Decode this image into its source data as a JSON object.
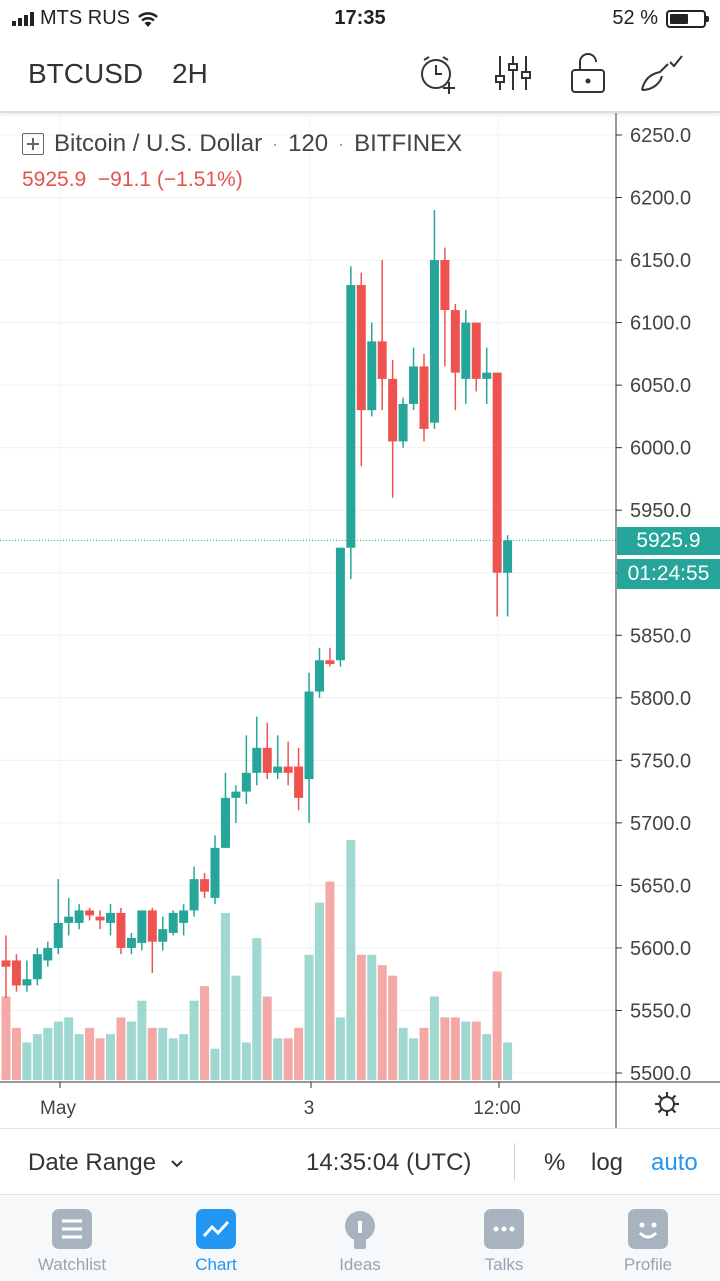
{
  "status_bar": {
    "carrier": "MTS RUS",
    "time": "17:35",
    "battery": "52 %"
  },
  "toolbar": {
    "symbol": "BTCUSD",
    "timeframe": "2H"
  },
  "legend": {
    "name": "Bitcoin / U.S. Dollar",
    "interval": "120",
    "exchange": "BITFINEX",
    "price": "5925.9",
    "change": "−91.1",
    "change_pct": "(−1.51%)"
  },
  "price_axis": {
    "labels": [
      "6250.0",
      "6200.0",
      "6150.0",
      "6100.0",
      "6050.0",
      "6000.0",
      "5950.0",
      "5900.0",
      "5850.0",
      "5800.0",
      "5750.0",
      "5700.0",
      "5650.0",
      "5600.0",
      "5550.0",
      "5500.0"
    ]
  },
  "last_price_tag": "5925.9",
  "countdown": "01:24:55",
  "time_axis": {
    "labels": [
      "May",
      "3",
      "12:00"
    ]
  },
  "bottom_bar": {
    "date_range": "Date Range",
    "utc_time": "14:35:04 (UTC)",
    "percent": "%",
    "log": "log",
    "auto": "auto"
  },
  "tabs": [
    {
      "label": "Watchlist",
      "icon": "watchlist-icon"
    },
    {
      "label": "Chart",
      "icon": "chart-icon",
      "active": true
    },
    {
      "label": "Ideas",
      "icon": "ideas-icon"
    },
    {
      "label": "Talks",
      "icon": "talks-icon"
    },
    {
      "label": "Profile",
      "icon": "profile-icon"
    }
  ],
  "colors": {
    "up": "#26a69a",
    "down": "#ef5350",
    "accent": "#2196f3"
  },
  "chart_data": {
    "type": "candlestick",
    "y_range": [
      5500,
      6250
    ],
    "candles": [
      {
        "o": 5590,
        "h": 5610,
        "l": 5560,
        "c": 5585
      },
      {
        "o": 5590,
        "h": 5595,
        "l": 5565,
        "c": 5570
      },
      {
        "o": 5570,
        "h": 5590,
        "l": 5565,
        "c": 5575
      },
      {
        "o": 5575,
        "h": 5600,
        "l": 5570,
        "c": 5595
      },
      {
        "o": 5590,
        "h": 5605,
        "l": 5585,
        "c": 5600
      },
      {
        "o": 5600,
        "h": 5655,
        "l": 5595,
        "c": 5620
      },
      {
        "o": 5620,
        "h": 5640,
        "l": 5610,
        "c": 5625
      },
      {
        "o": 5620,
        "h": 5635,
        "l": 5615,
        "c": 5630
      },
      {
        "o": 5630,
        "h": 5632,
        "l": 5622,
        "c": 5626
      },
      {
        "o": 5625,
        "h": 5630,
        "l": 5615,
        "c": 5622
      },
      {
        "o": 5620,
        "h": 5635,
        "l": 5610,
        "c": 5628
      },
      {
        "o": 5628,
        "h": 5632,
        "l": 5595,
        "c": 5600
      },
      {
        "o": 5600,
        "h": 5612,
        "l": 5595,
        "c": 5608
      },
      {
        "o": 5604,
        "h": 5630,
        "l": 5598,
        "c": 5630
      },
      {
        "o": 5630,
        "h": 5632,
        "l": 5580,
        "c": 5605
      },
      {
        "o": 5605,
        "h": 5625,
        "l": 5598,
        "c": 5615
      },
      {
        "o": 5612,
        "h": 5630,
        "l": 5610,
        "c": 5628
      },
      {
        "o": 5620,
        "h": 5635,
        "l": 5610,
        "c": 5630
      },
      {
        "o": 5630,
        "h": 5665,
        "l": 5625,
        "c": 5655
      },
      {
        "o": 5655,
        "h": 5660,
        "l": 5640,
        "c": 5645
      },
      {
        "o": 5640,
        "h": 5690,
        "l": 5635,
        "c": 5680
      },
      {
        "o": 5680,
        "h": 5740,
        "l": 5680,
        "c": 5720
      },
      {
        "o": 5720,
        "h": 5730,
        "l": 5700,
        "c": 5725
      },
      {
        "o": 5725,
        "h": 5770,
        "l": 5715,
        "c": 5740
      },
      {
        "o": 5740,
        "h": 5785,
        "l": 5730,
        "c": 5760
      },
      {
        "o": 5760,
        "h": 5780,
        "l": 5735,
        "c": 5740
      },
      {
        "o": 5740,
        "h": 5770,
        "l": 5735,
        "c": 5745
      },
      {
        "o": 5745,
        "h": 5765,
        "l": 5730,
        "c": 5740
      },
      {
        "o": 5745,
        "h": 5760,
        "l": 5710,
        "c": 5720
      },
      {
        "o": 5735,
        "h": 5820,
        "l": 5700,
        "c": 5805
      },
      {
        "o": 5805,
        "h": 5840,
        "l": 5800,
        "c": 5830
      },
      {
        "o": 5830,
        "h": 5840,
        "l": 5825,
        "c": 5827
      },
      {
        "o": 5830,
        "h": 5920,
        "l": 5825,
        "c": 5920
      },
      {
        "o": 5920,
        "h": 6145,
        "l": 5895,
        "c": 6130
      },
      {
        "o": 6130,
        "h": 6140,
        "l": 5985,
        "c": 6030
      },
      {
        "o": 6030,
        "h": 6100,
        "l": 6025,
        "c": 6085
      },
      {
        "o": 6085,
        "h": 6150,
        "l": 6030,
        "c": 6055
      },
      {
        "o": 6055,
        "h": 6070,
        "l": 5960,
        "c": 6005
      },
      {
        "o": 6005,
        "h": 6040,
        "l": 6000,
        "c": 6035
      },
      {
        "o": 6035,
        "h": 6080,
        "l": 6030,
        "c": 6065
      },
      {
        "o": 6065,
        "h": 6075,
        "l": 6005,
        "c": 6015
      },
      {
        "o": 6020,
        "h": 6190,
        "l": 6015,
        "c": 6150
      },
      {
        "o": 6150,
        "h": 6160,
        "l": 6065,
        "c": 6110
      },
      {
        "o": 6110,
        "h": 6115,
        "l": 6030,
        "c": 6060
      },
      {
        "o": 6055,
        "h": 6110,
        "l": 6035,
        "c": 6100
      },
      {
        "o": 6100,
        "h": 6100,
        "l": 6045,
        "c": 6055
      },
      {
        "o": 6055,
        "h": 6080,
        "l": 6035,
        "c": 6060
      },
      {
        "o": 6060,
        "h": 6060,
        "l": 5865,
        "c": 5900
      },
      {
        "o": 5900,
        "h": 5930,
        "l": 5865,
        "c": 5926
      }
    ],
    "volume": [
      40,
      25,
      18,
      22,
      25,
      28,
      30,
      22,
      25,
      20,
      22,
      30,
      28,
      38,
      25,
      25,
      20,
      22,
      38,
      45,
      15,
      80,
      50,
      18,
      68,
      40,
      20,
      20,
      25,
      60,
      85,
      95,
      30,
      115,
      60,
      60,
      55,
      50,
      25,
      20,
      25,
      40,
      30,
      30,
      28,
      28,
      22,
      52,
      18
    ]
  }
}
